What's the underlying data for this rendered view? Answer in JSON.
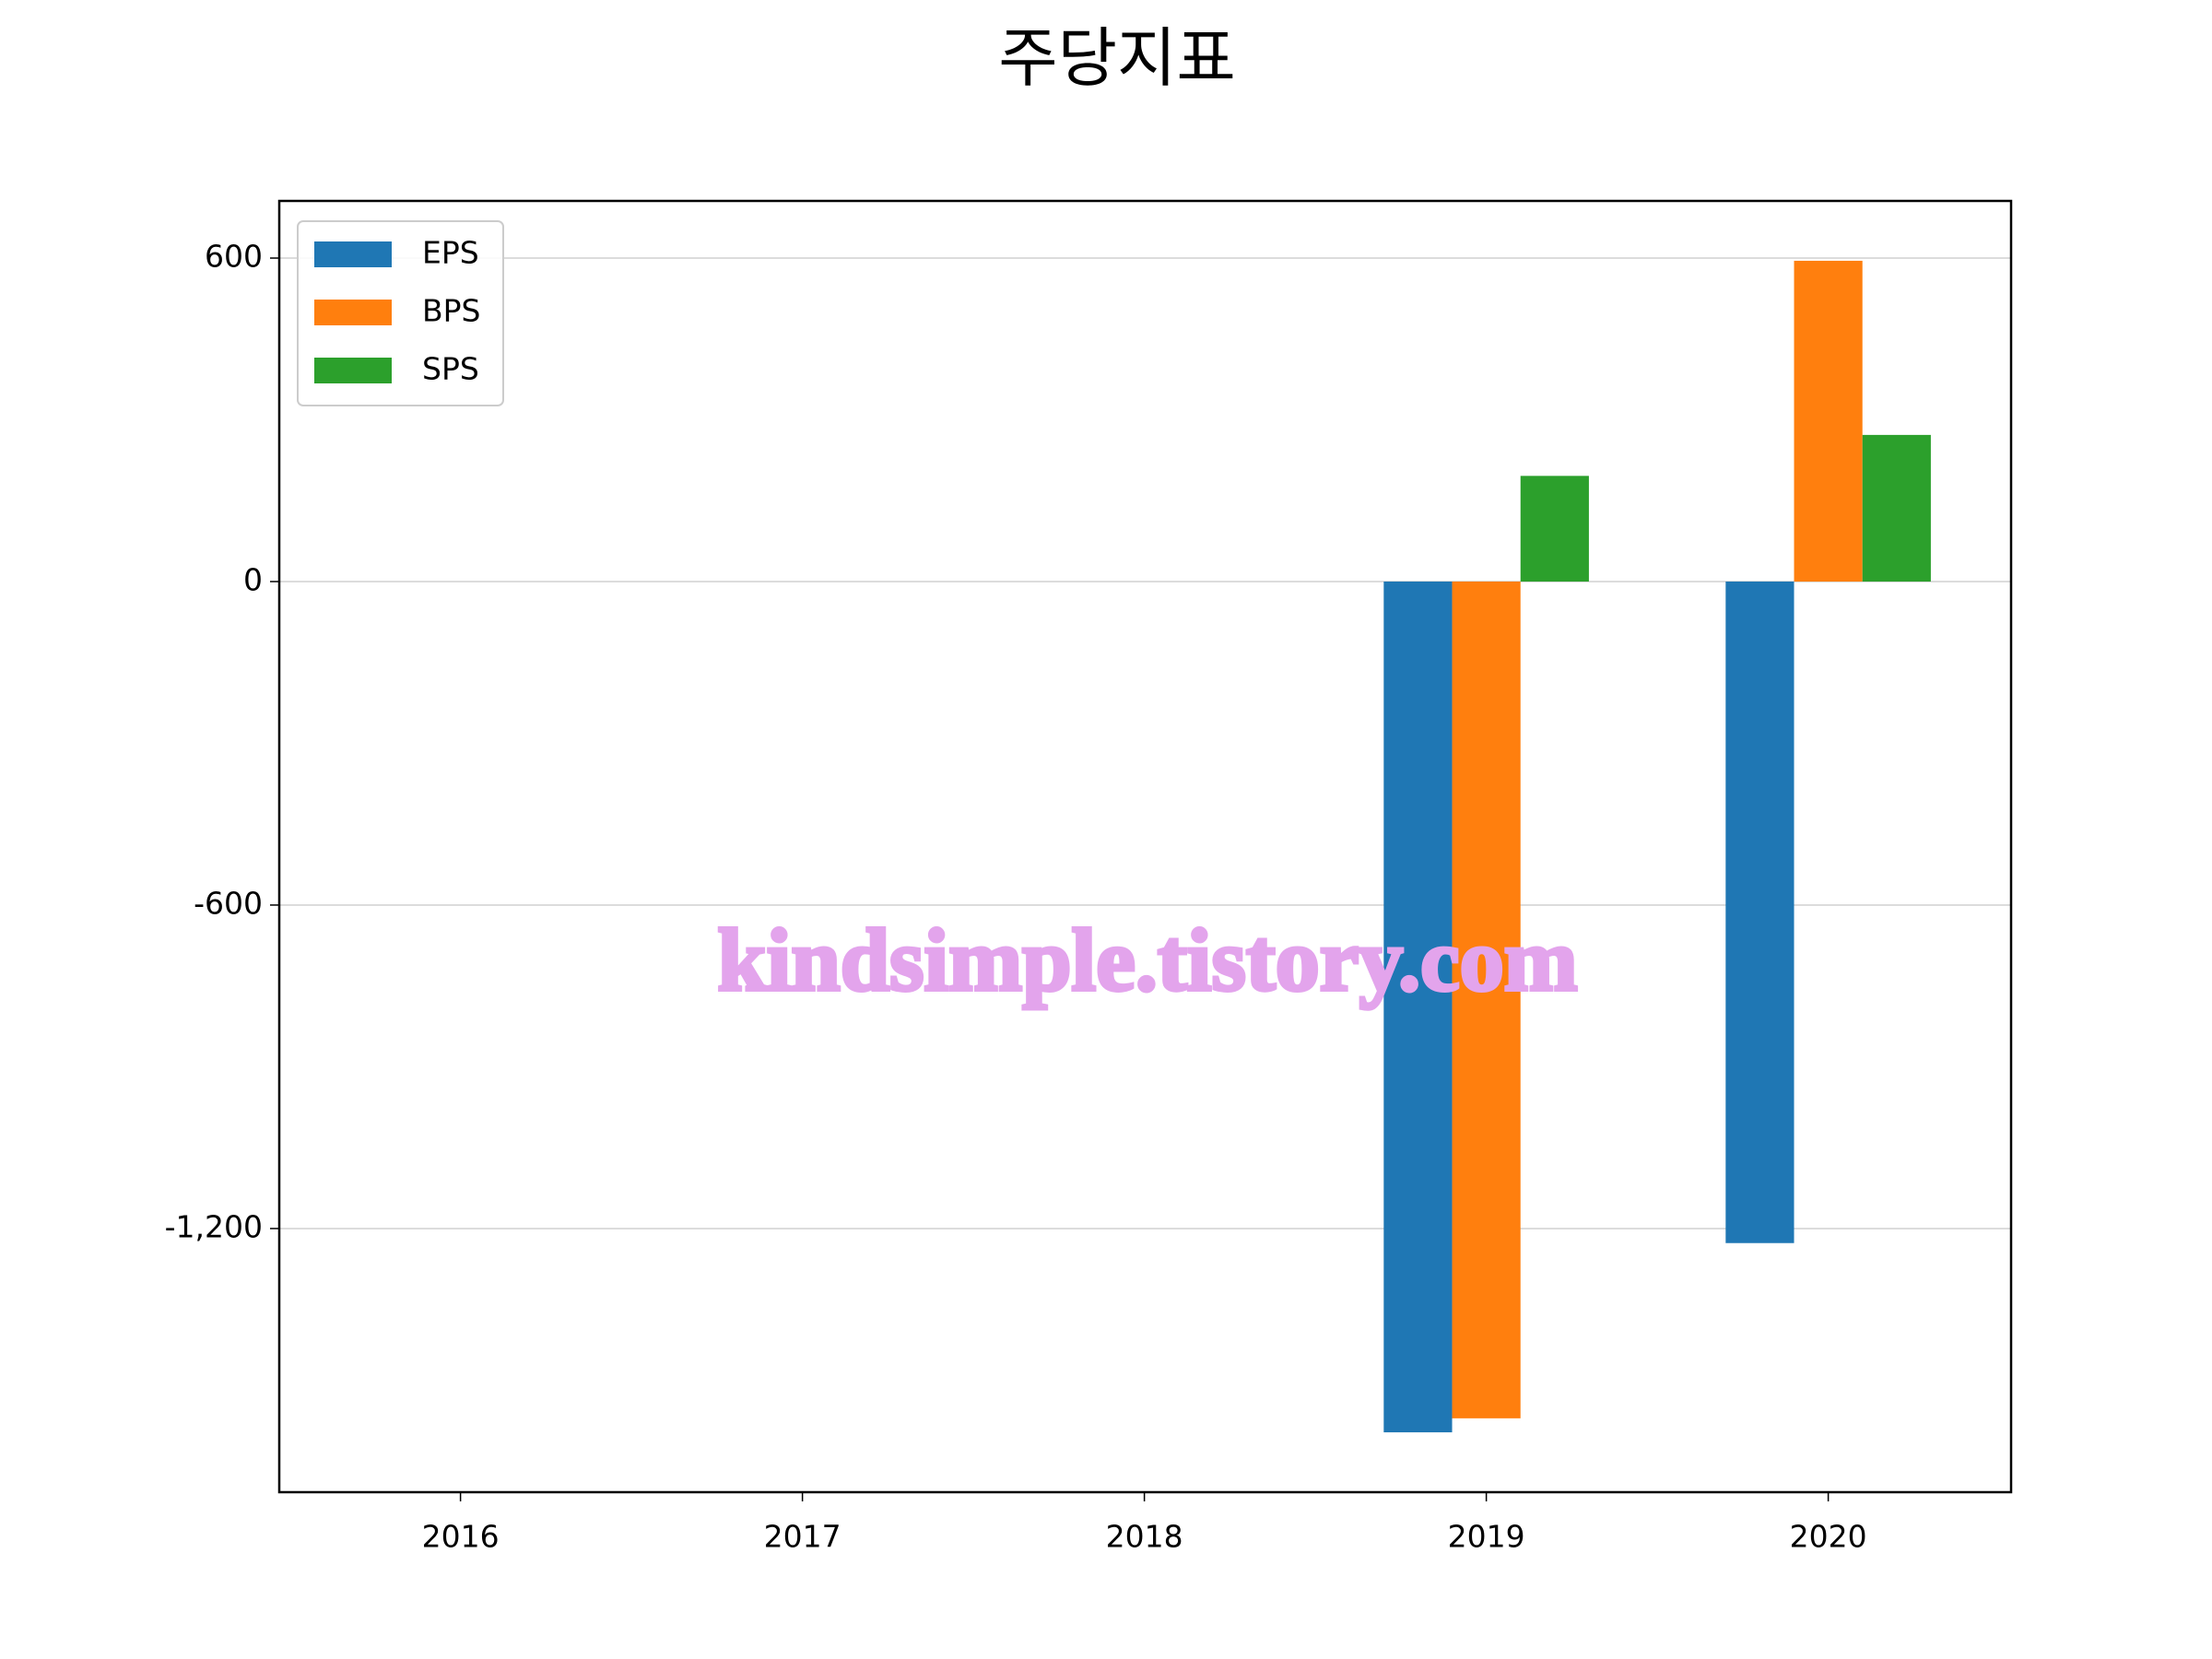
{
  "chart_data": {
    "type": "bar",
    "title": "주당지표",
    "categories": [
      "2016",
      "2017",
      "2018",
      "2019",
      "2020"
    ],
    "series": [
      {
        "name": "EPS",
        "color": "#1f77b4",
        "values": [
          null,
          null,
          null,
          -1578,
          -1227
        ]
      },
      {
        "name": "BPS",
        "color": "#ff7f0e",
        "values": [
          null,
          null,
          null,
          -1552,
          595
        ]
      },
      {
        "name": "SPS",
        "color": "#2ca02c",
        "values": [
          null,
          null,
          null,
          196,
          272
        ]
      }
    ],
    "ylim": [
      -1689,
      706
    ],
    "yticks": [
      {
        "value": -1200,
        "label": "-1,200"
      },
      -600,
      0,
      600
    ],
    "grid": true,
    "legend": "upper left",
    "watermark": "kindsimple.tistory.com"
  }
}
